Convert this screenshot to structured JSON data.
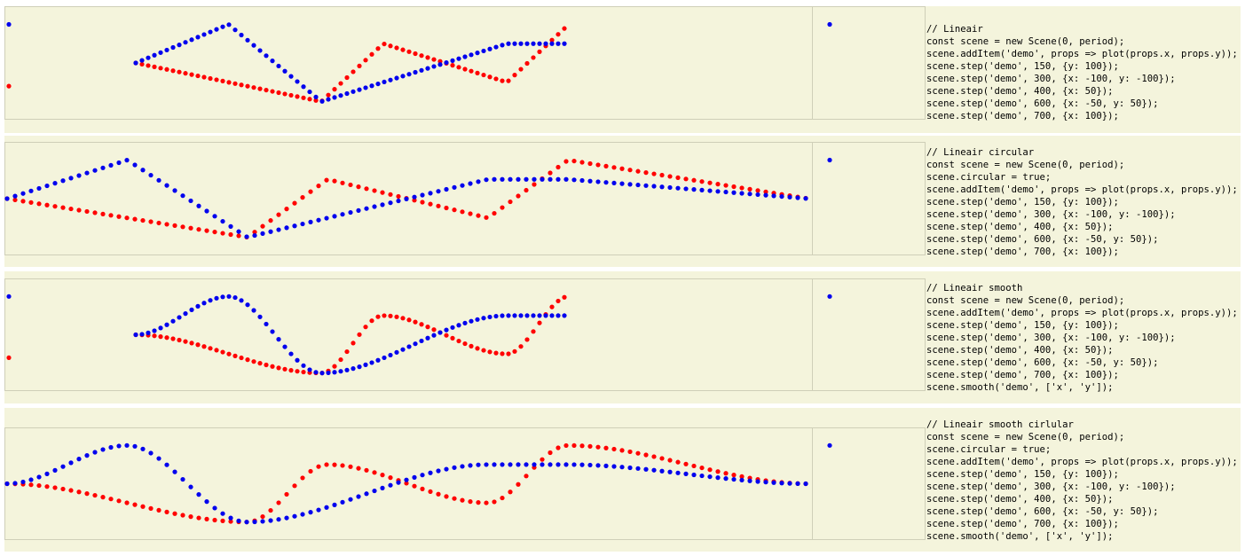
{
  "colors": {
    "x_dots": "#ff0000",
    "y_dots": "#0000ee",
    "panel_bg": "#f4f4dc"
  },
  "demos": [
    {
      "id": "lineair",
      "circular": false,
      "smooth": false,
      "code": [
        "// Lineair",
        "const scene = new Scene(0, period);",
        "scene.addItem('demo', props => plot(props.x, props.y));",
        "scene.step('demo', 150, {y: 100});",
        "scene.step('demo', 300, {x: -100, y: -100});",
        "scene.step('demo', 400, {x: 50});",
        "scene.step('demo', 600, {x: -50, y: 50});",
        "scene.step('demo', 700, {x: 100});"
      ]
    },
    {
      "id": "lineair-circular",
      "circular": true,
      "smooth": false,
      "code": [
        "// Lineair circular",
        "const scene = new Scene(0, period);",
        "scene.circular = true;",
        "scene.addItem('demo', props => plot(props.x, props.y));",
        "scene.step('demo', 150, {y: 100});",
        "scene.step('demo', 300, {x: -100, y: -100});",
        "scene.step('demo', 400, {x: 50});",
        "scene.step('demo', 600, {x: -50, y: 50});",
        "scene.step('demo', 700, {x: 100});"
      ]
    },
    {
      "id": "lineair-smooth",
      "circular": false,
      "smooth": true,
      "code": [
        "// Lineair smooth",
        "const scene = new Scene(0, period);",
        "scene.addItem('demo', props => plot(props.x, props.y));",
        "scene.step('demo', 150, {y: 100});",
        "scene.step('demo', 300, {x: -100, y: -100});",
        "scene.step('demo', 400, {x: 50});",
        "scene.step('demo', 600, {x: -50, y: 50});",
        "scene.step('demo', 700, {x: 100});",
        "scene.smooth('demo', ['x', 'y']);"
      ]
    },
    {
      "id": "lineair-smooth-circular",
      "circular": true,
      "smooth": true,
      "code": [
        "// Lineair smooth cirlular",
        "const scene = new Scene(0, period);",
        "scene.circular = true;",
        "scene.addItem('demo', props => plot(props.x, props.y));",
        "scene.step('demo', 150, {y: 100});",
        "scene.step('demo', 300, {x: -100, y: -100});",
        "scene.step('demo', 400, {x: 50});",
        "scene.step('demo', 600, {x: -50, y: 50});",
        "scene.step('demo', 700, {x: 100});",
        "scene.smooth('demo', ['x', 'y']);"
      ]
    }
  ]
}
